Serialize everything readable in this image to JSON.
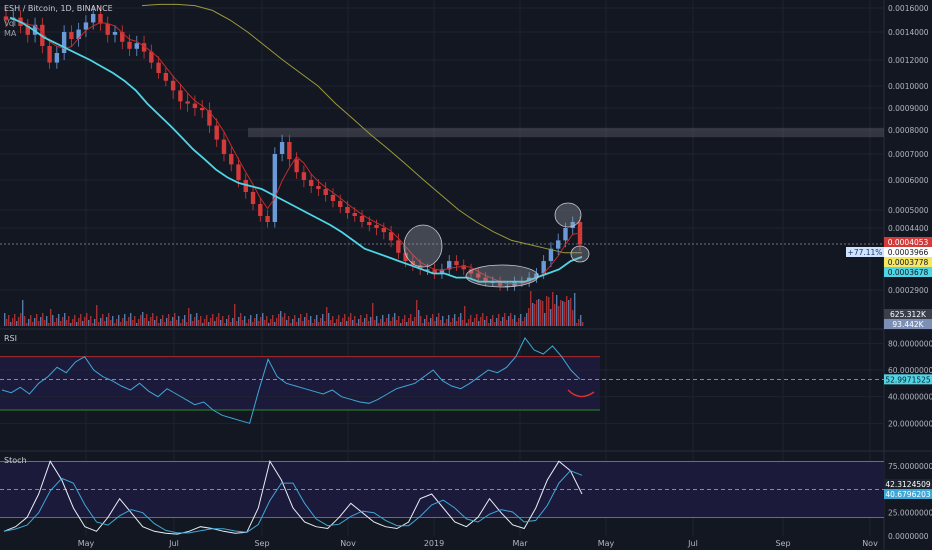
{
  "header": {
    "symbol_line": "ESH / Bitcoin, 1D, BINANCE",
    "vol_label": "Vol",
    "ma_label": "MA"
  },
  "panels": {
    "rsi_title": "RSI",
    "stoch_title": "Stoch"
  },
  "colors": {
    "background": "#131722",
    "grid": "#1e2330",
    "up": "#6a9bd8",
    "down": "#d33a3a",
    "ma_fast": "#c62b2b",
    "ma_mid": "#4fd6e6",
    "ma_slow": "#9a9a3a",
    "rsi_line": "#3ea7d8",
    "stoch_k": "#e6eef8",
    "stoch_d": "#3ea7d8",
    "panel_bg": "#1c1a3a"
  },
  "chart_data": [
    {
      "type": "candlestick",
      "title": "ESH / Bitcoin, 1D, BINANCE",
      "x_ticks": [
        "May",
        "Jul",
        "Sep",
        "Nov",
        "2019",
        "Mar",
        "May",
        "Jul",
        "Sep",
        "Nov"
      ],
      "y_ticks": [
        "0.0016000",
        "0.0014000",
        "0.0012000",
        "0.0010000",
        "0.0009000",
        "0.0008000",
        "0.0007000",
        "0.0006000",
        "0.0005000",
        "0.0004400",
        "0.0002900"
      ],
      "ylim": [
        0.00028,
        0.0017
      ],
      "price_labels": [
        {
          "text": "0.0004053",
          "color": "#d33a3a"
        },
        {
          "text": "0.0003966",
          "color": "#ffffff"
        },
        {
          "text": "0.0003778",
          "color": "#f5e663"
        },
        {
          "text": "0.0003678",
          "color": "#4fd6e6"
        }
      ],
      "change_label": "+77.11%",
      "volume_labels": [
        "625.312K",
        "93.442K"
      ],
      "resistance_zone": [
        0.00077,
        0.00081
      ],
      "close_series": [
        0.0015,
        0.00152,
        0.00145,
        0.00138,
        0.00146,
        0.0013,
        0.00118,
        0.00125,
        0.0014,
        0.00135,
        0.00142,
        0.00148,
        0.00155,
        0.00147,
        0.00138,
        0.0014,
        0.00133,
        0.00128,
        0.00132,
        0.00126,
        0.00118,
        0.0011,
        0.00104,
        0.00098,
        0.00093,
        0.00092,
        0.0009,
        0.00089,
        0.00082,
        0.00076,
        0.0007,
        0.00066,
        0.0006,
        0.00056,
        0.00052,
        0.00048,
        0.00046,
        0.0007,
        0.00075,
        0.00068,
        0.00063,
        0.0006,
        0.00058,
        0.00057,
        0.00055,
        0.00053,
        0.00051,
        0.00049,
        0.00048,
        0.00046,
        0.00045,
        0.00044,
        0.00043,
        0.00041,
        0.00038,
        0.00036,
        0.00035,
        0.00034,
        0.00034,
        0.00033,
        0.00034,
        0.00036,
        0.00035,
        0.00034,
        0.00033,
        0.00032,
        0.00031,
        0.00031,
        0.0003,
        0.0003,
        0.00031,
        0.00031,
        0.00032,
        0.00033,
        0.00036,
        0.00039,
        0.00041,
        0.00044,
        0.00046,
        0.0004
      ],
      "ma_mid_series": [
        0.00152,
        0.00148,
        0.00142,
        0.00136,
        0.00132,
        0.00128,
        0.00124,
        0.0012,
        0.00115,
        0.0011,
        0.00104,
        0.00098,
        0.00092,
        0.00087,
        0.00082,
        0.00077,
        0.00072,
        0.00068,
        0.00064,
        0.00061,
        0.00059,
        0.00058,
        0.00057,
        0.00055,
        0.00053,
        0.00051,
        0.00049,
        0.00047,
        0.00045,
        0.00043,
        0.00041,
        0.00039,
        0.00038,
        0.00037,
        0.00036,
        0.00035,
        0.00034,
        0.00033,
        0.00033,
        0.00032,
        0.00032,
        0.00031,
        0.00031,
        0.00031,
        0.00031,
        0.00031,
        0.00032,
        0.00033,
        0.00034,
        0.00036,
        0.00037
      ],
      "ma_slow_series": [
        0.00162,
        0.00163,
        0.00163,
        0.00162,
        0.00158,
        0.0015,
        0.0014,
        0.0013,
        0.0012,
        0.0011,
        0.001,
        0.00092,
        0.00085,
        0.00078,
        0.00072,
        0.00066,
        0.0006,
        0.00055,
        0.0005,
        0.00046,
        0.00043,
        0.00041,
        0.0004,
        0.00039,
        0.00038,
        0.00038
      ]
    },
    {
      "type": "line",
      "title": "RSI",
      "y_ticks": [
        "80.0000000",
        "60.0000000",
        "40.0000000",
        "20.0000000"
      ],
      "ylim": [
        0,
        90
      ],
      "bands": [
        30,
        70
      ],
      "midline": 52.9971525,
      "last_label": "52.9971525",
      "values": [
        45,
        43,
        47,
        42,
        50,
        55,
        62,
        58,
        66,
        70,
        60,
        55,
        52,
        48,
        45,
        50,
        44,
        40,
        46,
        42,
        38,
        34,
        36,
        30,
        26,
        24,
        22,
        20,
        45,
        68,
        55,
        50,
        48,
        46,
        44,
        42,
        45,
        40,
        38,
        36,
        35,
        38,
        42,
        46,
        48,
        50,
        55,
        60,
        52,
        48,
        46,
        50,
        55,
        60,
        58,
        62,
        70,
        84,
        75,
        72,
        78,
        70,
        60,
        53
      ]
    },
    {
      "type": "line",
      "title": "Stoch",
      "y_ticks": [
        "75.0000000",
        "25.0000000",
        "0.0000000"
      ],
      "ylim": [
        0,
        90
      ],
      "bands": [
        20,
        80
      ],
      "labels": [
        "42.3124509",
        "40.6796203"
      ],
      "k_values": [
        5,
        10,
        20,
        45,
        80,
        60,
        30,
        10,
        5,
        20,
        40,
        25,
        10,
        5,
        3,
        2,
        5,
        10,
        8,
        5,
        3,
        4,
        30,
        80,
        60,
        30,
        15,
        10,
        8,
        20,
        35,
        25,
        15,
        10,
        8,
        15,
        40,
        45,
        30,
        15,
        10,
        20,
        40,
        25,
        12,
        8,
        30,
        60,
        80,
        70,
        45
      ]
    }
  ]
}
